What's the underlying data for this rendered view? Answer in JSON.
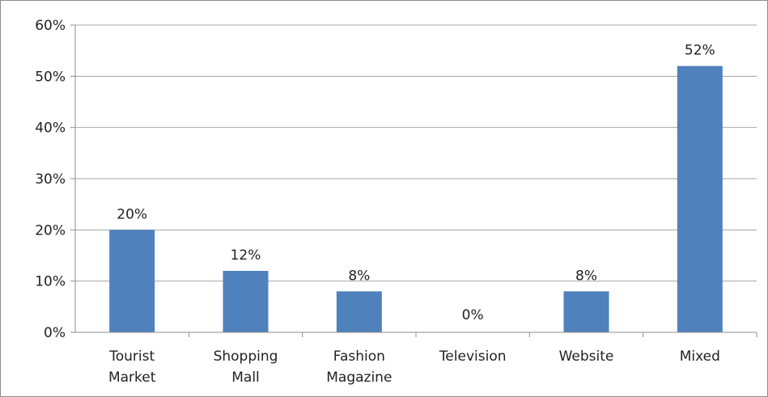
{
  "chart_data": {
    "type": "bar",
    "categories": [
      [
        "Tourist",
        "Market"
      ],
      [
        "Shopping",
        "Mall"
      ],
      [
        "Fashion",
        "Magazine"
      ],
      [
        "Television"
      ],
      [
        "Website"
      ],
      [
        "Mixed"
      ]
    ],
    "values": [
      20,
      12,
      8,
      0,
      8,
      52
    ],
    "data_labels": [
      "20%",
      "12%",
      "8%",
      "0%",
      "8%",
      "52%"
    ],
    "yticks": [
      "0%",
      "10%",
      "20%",
      "30%",
      "40%",
      "50%",
      "60%"
    ],
    "ylim": [
      0,
      60
    ],
    "grid": true,
    "bar_color": "#4f81bd",
    "grid_color": "#a6a6a6"
  }
}
